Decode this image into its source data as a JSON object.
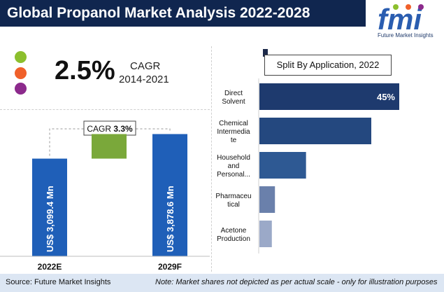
{
  "header": {
    "title": "Global Propanol Market Analysis 2022-2028",
    "logo_text": "Future Market Insights",
    "logo_letters": "fmi"
  },
  "legend_dots": [
    {
      "name": "green-dot",
      "color": "#8cbf2d"
    },
    {
      "name": "orange-dot",
      "color": "#f0602a"
    },
    {
      "name": "purple-dot",
      "color": "#8c2a8c"
    }
  ],
  "cagr": {
    "value": "2.5%",
    "label": "CAGR",
    "years": "2014-2021"
  },
  "footer": {
    "source": "Source: Future Market Insights",
    "note": "Note: Market shares not depicted as per actual scale - only for illustration purposes"
  },
  "chart_data": [
    {
      "type": "bar",
      "annotation_label": "CAGR",
      "annotation_value": "3.3%",
      "categories": [
        "2022E",
        "2029F"
      ],
      "values": [
        3099.4,
        3878.6
      ],
      "value_labels": [
        "US$ 3,099.4 Mn",
        "US$ 3,878.6 Mn"
      ],
      "increment_box": {
        "from": 3099.4,
        "to": 3878.6,
        "color": "#7aa83a"
      },
      "bar_color": "#1f5fb8",
      "ylim": [
        0,
        4000
      ]
    },
    {
      "type": "bar",
      "orientation": "horizontal",
      "title": "Split By Application, 2022",
      "categories": [
        [
          "Direct",
          "Solvent"
        ],
        [
          "Chemical",
          "Intermedia",
          "te"
        ],
        [
          "Household",
          "and",
          "Personal..."
        ],
        [
          "Pharmaceu",
          "tical"
        ],
        [
          "Acetone",
          "Production"
        ]
      ],
      "values": [
        45,
        36,
        15,
        5,
        4
      ],
      "data_labels": [
        "45%",
        "",
        "",
        "",
        ""
      ],
      "colors": [
        "#1e3a6e",
        "#24487f",
        "#2e5993",
        "#6a80ab",
        "#9ba9c8"
      ]
    }
  ]
}
